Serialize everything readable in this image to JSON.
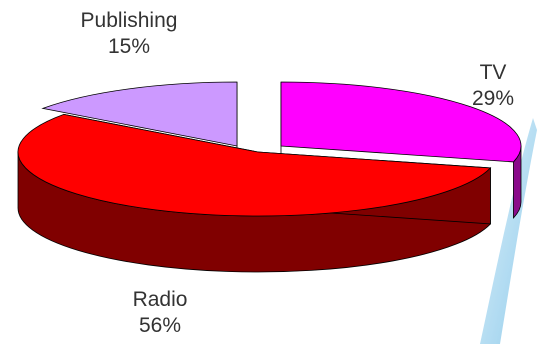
{
  "chart_data": {
    "type": "pie",
    "title": "",
    "three_d": true,
    "exploded": true,
    "slices": [
      {
        "label": "TV",
        "value": 29,
        "percent_label": "29%",
        "color": "#ff00ff",
        "side_color": "#8a0a8a"
      },
      {
        "label": "Radio",
        "value": 56,
        "percent_label": "56%",
        "color": "#ff0000",
        "side_color": "#800000"
      },
      {
        "label": "Publishing",
        "value": 15,
        "percent_label": "15%",
        "color": "#cc99ff",
        "side_color": "#6b5b8a"
      }
    ],
    "legend": "none",
    "label_position": "outside"
  }
}
